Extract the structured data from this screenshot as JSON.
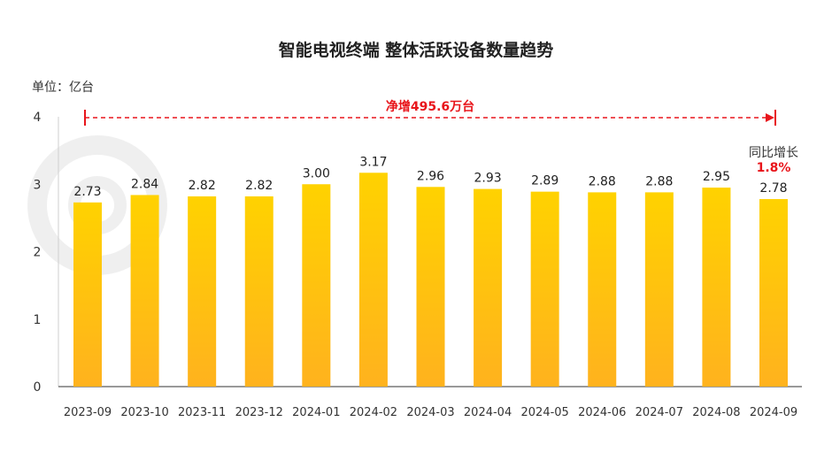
{
  "chart_data": {
    "type": "bar",
    "title": "智能电视终端 整体活跃设备数量趋势",
    "unit_label": "单位：亿台",
    "categories": [
      "2023-09",
      "2023-10",
      "2023-11",
      "2023-12",
      "2024-01",
      "2024-02",
      "2024-03",
      "2024-04",
      "2024-05",
      "2024-06",
      "2024-07",
      "2024-08",
      "2024-09"
    ],
    "values": [
      2.73,
      2.84,
      2.82,
      2.82,
      3.0,
      3.17,
      2.96,
      2.93,
      2.89,
      2.88,
      2.88,
      2.95,
      2.78
    ],
    "data_labels": [
      "2.73",
      "2.84",
      "2.82",
      "2.82",
      "3.00",
      "3.17",
      "2.96",
      "2.93",
      "2.89",
      "2.88",
      "2.88",
      "2.95",
      "2.78"
    ],
    "ylim": [
      0,
      4
    ],
    "yticks": [
      "0",
      "1",
      "2",
      "3",
      "4"
    ],
    "annotation": "净增495.6万台",
    "yoy_label": "同比增长",
    "yoy_value": "1.8%",
    "bar_color_top": "#ffd200",
    "bar_color_bottom": "#ffb21e",
    "annotation_color": "#e8151b",
    "grid": false
  }
}
